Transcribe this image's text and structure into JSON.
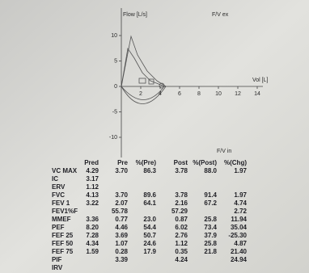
{
  "chart": {
    "y_label": "Flow [L/s]",
    "title": "F/V ex",
    "x_label": "Vol [L]",
    "inspiration_label": "F/V in",
    "yticks": [
      10,
      5,
      0,
      -5,
      -10
    ],
    "xticks": [
      2,
      4,
      6,
      8,
      10,
      12,
      14
    ]
  },
  "table": {
    "header": [
      "Pred",
      "Pre",
      "%(Pre)",
      "Post",
      "%(Post)",
      "%(Chg)"
    ],
    "rows": [
      [
        "VC MAX",
        "4.29",
        "3.70",
        "86.3",
        "3.78",
        "88.0",
        "1.97"
      ],
      [
        "IC",
        "3.17",
        null,
        null,
        null,
        null,
        null
      ],
      [
        "ERV",
        "1.12",
        null,
        null,
        null,
        null,
        null
      ],
      [
        "FVC",
        "4.13",
        "3.70",
        "89.6",
        "3.78",
        "91.4",
        "1.97"
      ],
      [
        "FEV 1",
        "3.22",
        "2.07",
        "64.1",
        "2.16",
        "67.2",
        "4.74"
      ],
      [
        "FEV1%F",
        null,
        "55.78",
        null,
        "57.29",
        null,
        "2.72"
      ],
      [
        "MMEF",
        "3.36",
        "0.77",
        "23.0",
        "0.87",
        "25.8",
        "11.94"
      ],
      [
        "PEF",
        "8.20",
        "4.46",
        "54.4",
        "6.02",
        "73.4",
        "35.04"
      ],
      [
        "FEF 25",
        "7.28",
        "3.69",
        "50.7",
        "2.76",
        "37.9",
        "-25.30"
      ],
      [
        "FEF 50",
        "4.34",
        "1.07",
        "24.6",
        "1.12",
        "25.8",
        "4.87"
      ],
      [
        "FEF 75",
        "1.59",
        "0.28",
        "17.9",
        "0.35",
        "21.8",
        "21.40"
      ],
      [
        "PIF",
        null,
        "3.39",
        null,
        "4.24",
        null,
        "24.94"
      ],
      [
        "IRV",
        null,
        null,
        null,
        null,
        null,
        null
      ]
    ]
  }
}
